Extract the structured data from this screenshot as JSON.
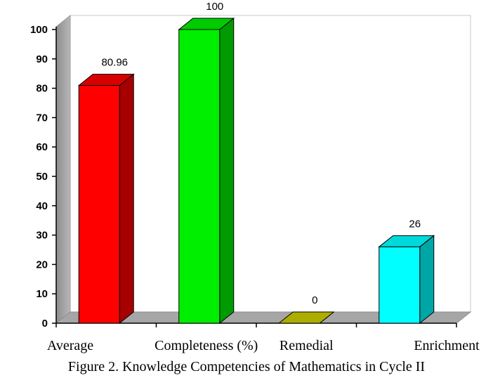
{
  "chart_data": {
    "type": "bar",
    "categories": [
      "Average",
      "Completeness (%)",
      "Remedial",
      "Enrichment"
    ],
    "values": [
      80.96,
      100,
      0,
      26
    ],
    "data_labels": [
      "80.96",
      "100",
      "0",
      "26"
    ],
    "colors": [
      "#ff0000",
      "#00ee00",
      "#cccc00",
      "#00ffff"
    ],
    "ylim": [
      0,
      100
    ],
    "yticks": [
      "0",
      "10",
      "20",
      "30",
      "40",
      "50",
      "60",
      "70",
      "80",
      "90",
      "100"
    ],
    "grid": false,
    "legend": "none",
    "caption": "Figure 2. Knowledge Competencies of Mathematics in Cycle II"
  }
}
